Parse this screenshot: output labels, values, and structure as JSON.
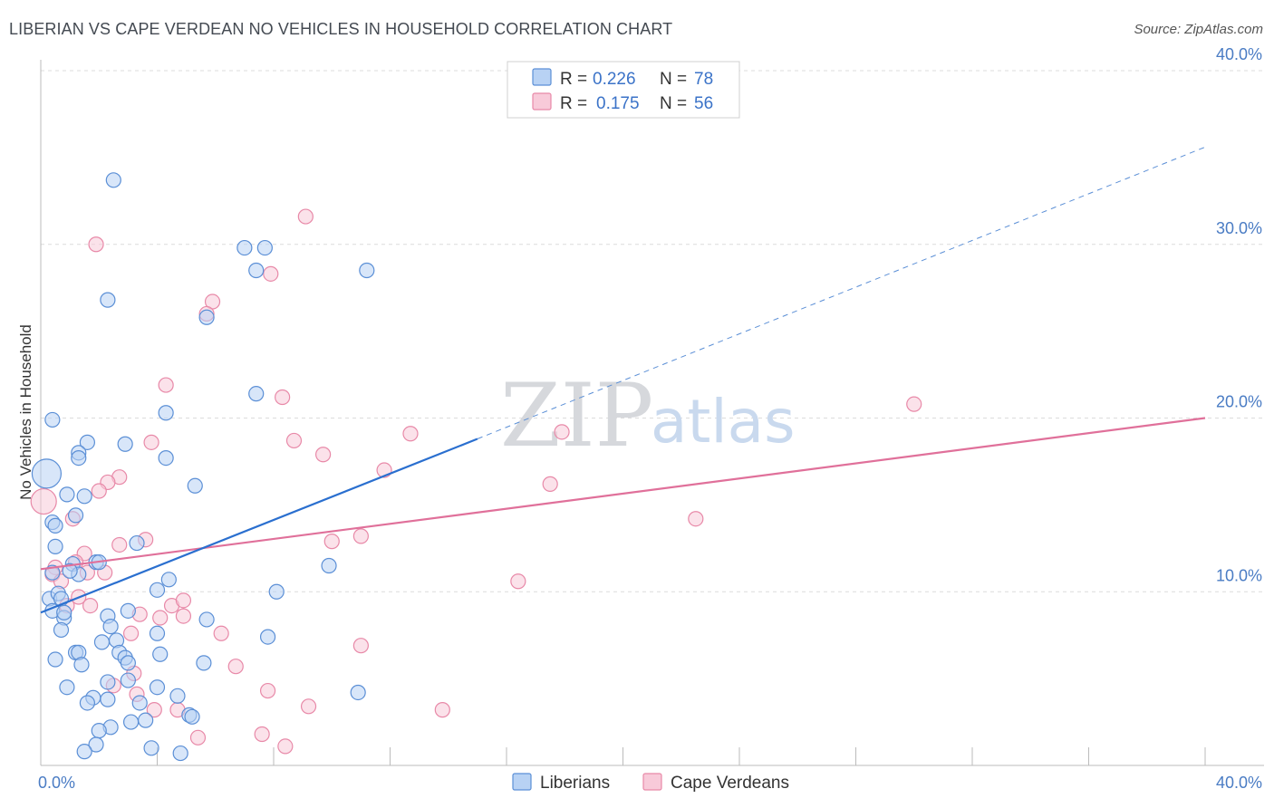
{
  "header": {
    "title": "LIBERIAN VS CAPE VERDEAN NO VEHICLES IN HOUSEHOLD CORRELATION CHART",
    "source": "Source: ZipAtlas.com"
  },
  "watermark": {
    "zip": "ZIP",
    "atlas": "atlas"
  },
  "colors": {
    "liberian_fill": "#b8d2f4",
    "liberian_stroke": "#5b8fd6",
    "liberian_line": "#2a6fcf",
    "capeverdean_fill": "#f8cad9",
    "capeverdean_stroke": "#e889a8",
    "capeverdean_line": "#e0709a",
    "grid": "#dcdcdc",
    "tick_text": "#4a7cc4"
  },
  "legend": {
    "rows": [
      {
        "r_label": "R =",
        "r_value": "0.226",
        "n_label": "N =",
        "n_value": "78"
      },
      {
        "r_label": "R =",
        "r_value": "0.175",
        "n_label": "N =",
        "n_value": "56"
      }
    ]
  },
  "bottom_legend": [
    "Liberians",
    "Cape Verdeans"
  ],
  "chart_data": {
    "type": "scatter",
    "title": "LIBERIAN VS CAPE VERDEAN NO VEHICLES IN HOUSEHOLD CORRELATION CHART",
    "xlabel": "",
    "ylabel": "No Vehicles in Household",
    "xlim": [
      0,
      40
    ],
    "ylim": [
      0,
      40
    ],
    "x_tick_labels": [
      "0.0%",
      "40.0%"
    ],
    "y_ticks": [
      10,
      20,
      30,
      40
    ],
    "y_tick_labels": [
      "10.0%",
      "20.0%",
      "30.0%",
      "40.0%"
    ],
    "grid": true,
    "legend_position": "top-center",
    "series": [
      {
        "name": "Liberians",
        "r": 0.226,
        "n": 78,
        "trend": {
          "x0": 0,
          "y0": 8.8,
          "x1": 15,
          "y1": 18.8,
          "dashed_to_x": 40,
          "dashed_to_y": 35.6
        },
        "points": [
          [
            0.2,
            16.8,
            16
          ],
          [
            2.5,
            33.7,
            8
          ],
          [
            2.3,
            26.8,
            8
          ],
          [
            7.0,
            29.8,
            8
          ],
          [
            7.7,
            29.8,
            8
          ],
          [
            7.4,
            28.5,
            8
          ],
          [
            11.2,
            28.5,
            8
          ],
          [
            5.7,
            25.8,
            8
          ],
          [
            7.4,
            21.4,
            8
          ],
          [
            4.3,
            20.3,
            8
          ],
          [
            0.4,
            19.9,
            8
          ],
          [
            1.6,
            18.6,
            8
          ],
          [
            1.3,
            18.0,
            8
          ],
          [
            1.3,
            17.7,
            8
          ],
          [
            4.3,
            17.7,
            8
          ],
          [
            2.9,
            18.5,
            8
          ],
          [
            5.3,
            16.1,
            8
          ],
          [
            0.9,
            15.6,
            8
          ],
          [
            1.5,
            15.5,
            8
          ],
          [
            1.2,
            14.4,
            8
          ],
          [
            0.4,
            14.0,
            8
          ],
          [
            0.5,
            13.8,
            8
          ],
          [
            3.3,
            12.8,
            8
          ],
          [
            0.5,
            12.6,
            8
          ],
          [
            0.4,
            11.1,
            8
          ],
          [
            1.1,
            11.6,
            8
          ],
          [
            1.3,
            11.0,
            8
          ],
          [
            1.9,
            11.7,
            8
          ],
          [
            9.9,
            11.5,
            8
          ],
          [
            4.0,
            10.1,
            8
          ],
          [
            4.4,
            10.7,
            8
          ],
          [
            8.1,
            10.0,
            8
          ],
          [
            0.3,
            9.6,
            8
          ],
          [
            0.6,
            9.9,
            8
          ],
          [
            0.7,
            9.6,
            8
          ],
          [
            0.4,
            8.9,
            8
          ],
          [
            0.8,
            8.5,
            8
          ],
          [
            2.3,
            8.6,
            8
          ],
          [
            3.0,
            8.9,
            8
          ],
          [
            0.7,
            7.8,
            8
          ],
          [
            2.4,
            8.0,
            8
          ],
          [
            5.7,
            8.4,
            8
          ],
          [
            2.1,
            7.1,
            8
          ],
          [
            2.6,
            7.2,
            8
          ],
          [
            4.0,
            7.6,
            8
          ],
          [
            7.8,
            7.4,
            8
          ],
          [
            1.2,
            6.5,
            8
          ],
          [
            1.3,
            6.5,
            8
          ],
          [
            0.5,
            6.1,
            8
          ],
          [
            2.7,
            6.5,
            8
          ],
          [
            2.9,
            6.2,
            8
          ],
          [
            3.0,
            5.9,
            8
          ],
          [
            4.1,
            6.4,
            8
          ],
          [
            5.6,
            5.9,
            8
          ],
          [
            1.4,
            5.8,
            8
          ],
          [
            0.9,
            4.5,
            8
          ],
          [
            2.3,
            4.8,
            8
          ],
          [
            3.0,
            4.9,
            8
          ],
          [
            4.0,
            4.5,
            8
          ],
          [
            10.9,
            4.2,
            8
          ],
          [
            1.8,
            3.9,
            8
          ],
          [
            2.3,
            3.8,
            8
          ],
          [
            1.6,
            3.6,
            8
          ],
          [
            3.4,
            3.6,
            8
          ],
          [
            4.7,
            4.0,
            8
          ],
          [
            5.1,
            2.9,
            8
          ],
          [
            5.2,
            2.8,
            8
          ],
          [
            3.1,
            2.5,
            8
          ],
          [
            3.6,
            2.6,
            8
          ],
          [
            2.4,
            2.2,
            8
          ],
          [
            2.0,
            2.0,
            8
          ],
          [
            1.9,
            1.2,
            8
          ],
          [
            1.5,
            0.8,
            8
          ],
          [
            3.8,
            1.0,
            8
          ],
          [
            4.8,
            0.7,
            8
          ],
          [
            0.8,
            8.8,
            8
          ],
          [
            1.0,
            11.2,
            8
          ],
          [
            2.0,
            11.7,
            8
          ]
        ]
      },
      {
        "name": "Cape Verdeans",
        "r": 0.175,
        "n": 56,
        "trend": {
          "x0": 0,
          "y0": 11.3,
          "x1": 40,
          "y1": 20.0
        },
        "points": [
          [
            0.1,
            15.2,
            14
          ],
          [
            9.1,
            31.6,
            8
          ],
          [
            1.9,
            30.0,
            8
          ],
          [
            7.9,
            28.3,
            8
          ],
          [
            5.9,
            26.7,
            8
          ],
          [
            5.7,
            26.0,
            8
          ],
          [
            4.3,
            21.9,
            8
          ],
          [
            8.3,
            21.2,
            8
          ],
          [
            30.0,
            20.8,
            8
          ],
          [
            12.7,
            19.1,
            8
          ],
          [
            17.9,
            19.2,
            8
          ],
          [
            3.8,
            18.6,
            8
          ],
          [
            8.7,
            18.7,
            8
          ],
          [
            9.7,
            17.9,
            8
          ],
          [
            11.8,
            17.0,
            8
          ],
          [
            2.7,
            16.6,
            8
          ],
          [
            2.3,
            16.3,
            8
          ],
          [
            2.0,
            15.8,
            8
          ],
          [
            17.5,
            16.2,
            8
          ],
          [
            1.1,
            14.2,
            8
          ],
          [
            22.5,
            14.2,
            8
          ],
          [
            3.6,
            13.0,
            8
          ],
          [
            2.7,
            12.7,
            8
          ],
          [
            10.0,
            12.9,
            8
          ],
          [
            11.0,
            13.2,
            8
          ],
          [
            1.5,
            12.2,
            8
          ],
          [
            0.5,
            11.4,
            8
          ],
          [
            1.6,
            11.1,
            8
          ],
          [
            2.2,
            11.1,
            8
          ],
          [
            0.4,
            11.0,
            8
          ],
          [
            0.7,
            10.6,
            8
          ],
          [
            1.2,
            11.7,
            8
          ],
          [
            16.4,
            10.6,
            8
          ],
          [
            1.3,
            9.7,
            8
          ],
          [
            0.9,
            9.2,
            8
          ],
          [
            4.5,
            9.2,
            8
          ],
          [
            4.9,
            9.5,
            8
          ],
          [
            3.4,
            8.7,
            8
          ],
          [
            4.1,
            8.5,
            8
          ],
          [
            4.9,
            8.6,
            8
          ],
          [
            3.1,
            7.6,
            8
          ],
          [
            6.2,
            7.6,
            8
          ],
          [
            11.0,
            6.9,
            8
          ],
          [
            6.7,
            5.7,
            8
          ],
          [
            3.2,
            5.3,
            8
          ],
          [
            2.5,
            4.6,
            8
          ],
          [
            7.8,
            4.3,
            8
          ],
          [
            3.3,
            4.1,
            8
          ],
          [
            9.2,
            3.4,
            8
          ],
          [
            4.7,
            3.2,
            8
          ],
          [
            3.9,
            3.2,
            8
          ],
          [
            13.8,
            3.2,
            8
          ],
          [
            7.6,
            1.8,
            8
          ],
          [
            5.4,
            1.6,
            8
          ],
          [
            8.4,
            1.1,
            8
          ],
          [
            1.7,
            9.2,
            8
          ]
        ]
      }
    ]
  }
}
